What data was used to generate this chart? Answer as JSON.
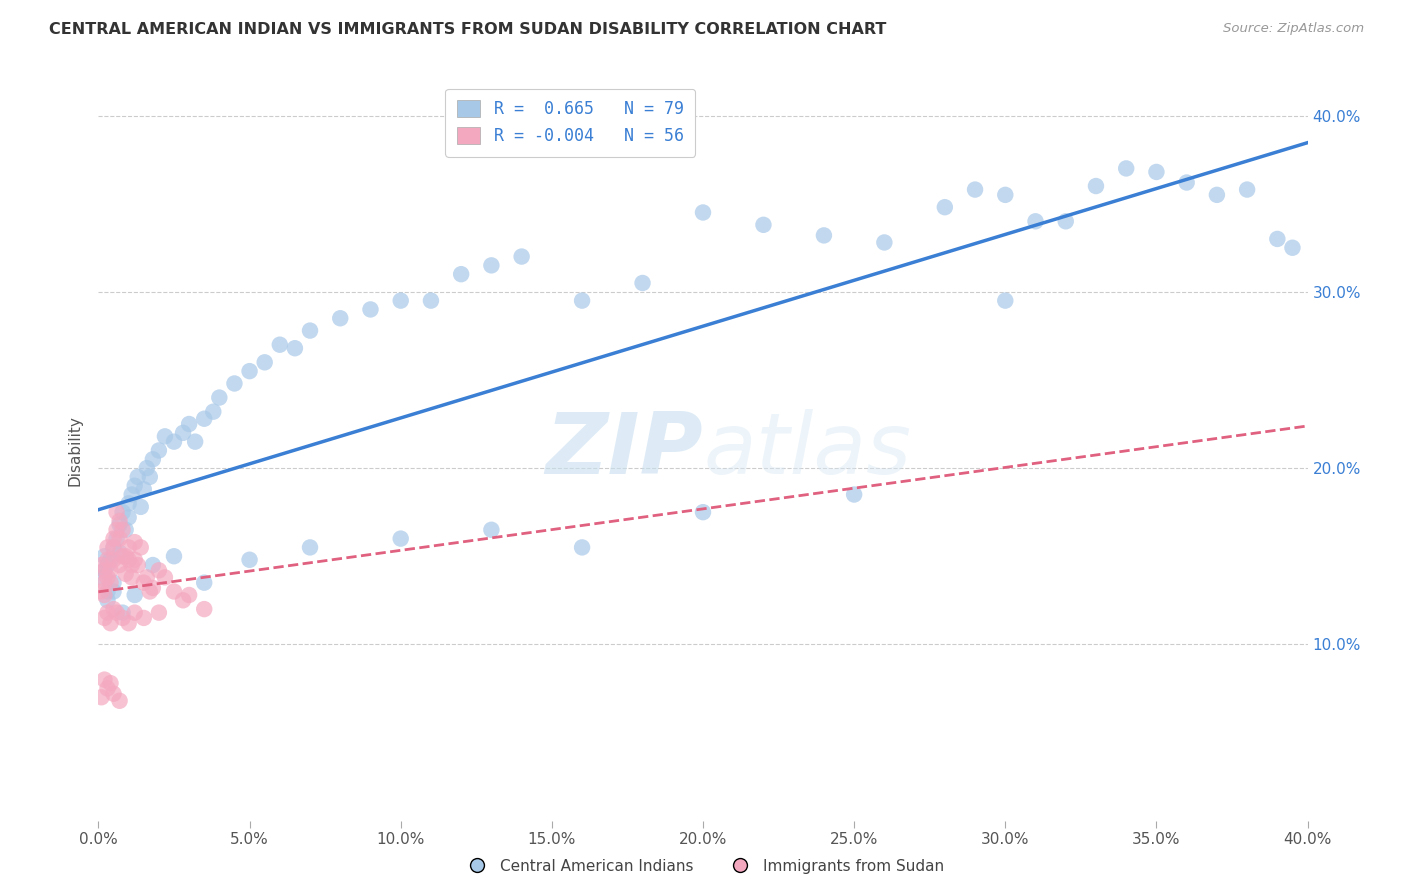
{
  "title": "CENTRAL AMERICAN INDIAN VS IMMIGRANTS FROM SUDAN DISABILITY CORRELATION CHART",
  "source": "Source: ZipAtlas.com",
  "ylabel": "Disability",
  "xlim": [
    0.0,
    0.4
  ],
  "ylim": [
    0.0,
    0.42
  ],
  "ytick_labels_right": [
    "10.0%",
    "20.0%",
    "30.0%",
    "40.0%"
  ],
  "ytick_vals_right": [
    0.1,
    0.2,
    0.3,
    0.4
  ],
  "xtick_vals": [
    0.0,
    0.05,
    0.1,
    0.15,
    0.2,
    0.25,
    0.3,
    0.35,
    0.4
  ],
  "xtick_labels": [
    "0.0%",
    "5.0%",
    "10.0%",
    "15.0%",
    "20.0%",
    "25.0%",
    "30.0%",
    "35.0%",
    "40.0%"
  ],
  "blue_R": 0.665,
  "blue_N": 79,
  "pink_R": -0.004,
  "pink_N": 56,
  "blue_color": "#a8c8e8",
  "pink_color": "#f4a8c0",
  "blue_line_color": "#3a7fd4",
  "pink_line_color": "#e06080",
  "watermark_zip": "ZIP",
  "watermark_atlas": "atlas",
  "legend_label_blue": "Central American Indians",
  "legend_label_pink": "Immigrants from Sudan",
  "blue_x": [
    0.001,
    0.002,
    0.002,
    0.003,
    0.003,
    0.004,
    0.005,
    0.005,
    0.006,
    0.007,
    0.007,
    0.008,
    0.009,
    0.01,
    0.01,
    0.011,
    0.012,
    0.013,
    0.014,
    0.015,
    0.016,
    0.017,
    0.018,
    0.02,
    0.022,
    0.025,
    0.028,
    0.03,
    0.032,
    0.035,
    0.038,
    0.04,
    0.045,
    0.05,
    0.055,
    0.06,
    0.065,
    0.07,
    0.08,
    0.09,
    0.1,
    0.11,
    0.12,
    0.13,
    0.14,
    0.16,
    0.18,
    0.2,
    0.22,
    0.24,
    0.26,
    0.28,
    0.29,
    0.3,
    0.31,
    0.32,
    0.33,
    0.34,
    0.35,
    0.36,
    0.37,
    0.38,
    0.39,
    0.395,
    0.003,
    0.005,
    0.008,
    0.012,
    0.018,
    0.025,
    0.035,
    0.05,
    0.07,
    0.1,
    0.13,
    0.16,
    0.2,
    0.25,
    0.3
  ],
  "blue_y": [
    0.138,
    0.142,
    0.15,
    0.13,
    0.145,
    0.148,
    0.155,
    0.135,
    0.16,
    0.152,
    0.168,
    0.175,
    0.165,
    0.172,
    0.18,
    0.185,
    0.19,
    0.195,
    0.178,
    0.188,
    0.2,
    0.195,
    0.205,
    0.21,
    0.218,
    0.215,
    0.22,
    0.225,
    0.215,
    0.228,
    0.232,
    0.24,
    0.248,
    0.255,
    0.26,
    0.27,
    0.268,
    0.278,
    0.285,
    0.29,
    0.295,
    0.295,
    0.31,
    0.315,
    0.32,
    0.295,
    0.305,
    0.345,
    0.338,
    0.332,
    0.328,
    0.348,
    0.358,
    0.355,
    0.34,
    0.34,
    0.36,
    0.37,
    0.368,
    0.362,
    0.355,
    0.358,
    0.33,
    0.325,
    0.125,
    0.13,
    0.118,
    0.128,
    0.145,
    0.15,
    0.135,
    0.148,
    0.155,
    0.16,
    0.165,
    0.155,
    0.175,
    0.185,
    0.295
  ],
  "pink_x": [
    0.001,
    0.001,
    0.002,
    0.002,
    0.002,
    0.003,
    0.003,
    0.003,
    0.004,
    0.004,
    0.005,
    0.005,
    0.005,
    0.006,
    0.006,
    0.007,
    0.007,
    0.007,
    0.008,
    0.008,
    0.009,
    0.009,
    0.01,
    0.01,
    0.011,
    0.011,
    0.012,
    0.012,
    0.013,
    0.014,
    0.015,
    0.016,
    0.017,
    0.018,
    0.02,
    0.022,
    0.025,
    0.028,
    0.03,
    0.035,
    0.002,
    0.003,
    0.004,
    0.005,
    0.006,
    0.008,
    0.01,
    0.012,
    0.015,
    0.02,
    0.002,
    0.003,
    0.001,
    0.004,
    0.005,
    0.007
  ],
  "pink_y": [
    0.13,
    0.145,
    0.128,
    0.135,
    0.142,
    0.138,
    0.148,
    0.155,
    0.135,
    0.142,
    0.148,
    0.16,
    0.155,
    0.165,
    0.175,
    0.17,
    0.145,
    0.16,
    0.15,
    0.165,
    0.15,
    0.14,
    0.148,
    0.155,
    0.138,
    0.145,
    0.148,
    0.158,
    0.145,
    0.155,
    0.135,
    0.138,
    0.13,
    0.132,
    0.142,
    0.138,
    0.13,
    0.125,
    0.128,
    0.12,
    0.115,
    0.118,
    0.112,
    0.12,
    0.118,
    0.115,
    0.112,
    0.118,
    0.115,
    0.118,
    0.08,
    0.075,
    0.07,
    0.078,
    0.072,
    0.068
  ]
}
